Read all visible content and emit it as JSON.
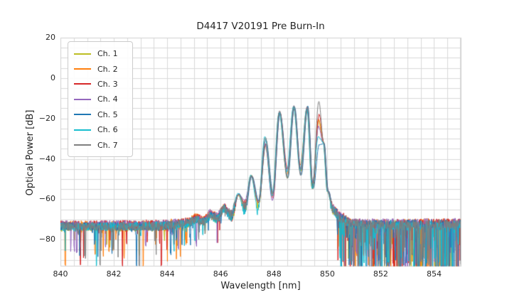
{
  "figure": {
    "background": "#ffffff",
    "text_color": "#262626",
    "grid_color": "#d9d9d9",
    "border_color": "#d2d2d2"
  },
  "chart_data": {
    "type": "line",
    "title": "D4417 V20191 Pre Burn-In",
    "xlabel": "Wavelength [nm]",
    "ylabel": "Optical Power [dB]",
    "xlim": [
      840,
      855
    ],
    "ylim": [
      -93.3,
      20
    ],
    "xticks": [
      840,
      842,
      844,
      846,
      848,
      850,
      852,
      854
    ],
    "yticks": [
      20,
      0,
      -20,
      -40,
      -60,
      -80
    ],
    "grid": {
      "minor_x_step_nm": 0.5,
      "minor_y_step_db": 5,
      "visible": true
    },
    "legend_position": "upper left",
    "x_range_nm": [
      840,
      855
    ],
    "sample_step_nm": 0.012,
    "description": "Optical spectra of 7 laser channels; ASE noise floor near -72 dB, modulated lobe structure rising from ~845 nm with ~0.5 nm mode spacing, envelope peaking near -12 dB at ~849.7 nm, sharp cut-off at 850 nm back to a noisy floor with deep downward spikes.",
    "noise": {
      "floor_db": -72.5,
      "jitter_db": 2.2,
      "spike_prob_left": 0.045,
      "spike_prob_mid": 0.02,
      "spike_prob_right": 0.22,
      "spike_depth_left_db": 15,
      "spike_depth_right_db": 26,
      "right_region_start_nm": 850.35,
      "quiet_threshold_db": -62,
      "deep_spike_floor_db": -93.1
    },
    "spectral_envelope": [
      [
        840.0,
        -73.2
      ],
      [
        843.5,
        -73.0
      ],
      [
        844.3,
        -72.6
      ],
      [
        844.75,
        -71.5
      ],
      [
        845.1,
        -69.5
      ],
      [
        845.35,
        -70.8
      ],
      [
        845.62,
        -67.5
      ],
      [
        845.88,
        -69.2
      ],
      [
        846.13,
        -64.4
      ],
      [
        846.4,
        -67.5
      ],
      [
        846.67,
        -57.5
      ],
      [
        846.92,
        -63.0
      ],
      [
        847.15,
        -48.5
      ],
      [
        847.42,
        -62.5
      ],
      [
        847.68,
        -31.5
      ],
      [
        847.95,
        -59.5
      ],
      [
        848.21,
        -16.8
      ],
      [
        848.5,
        -47.5
      ],
      [
        848.75,
        -14.2
      ],
      [
        849.0,
        -45.5
      ],
      [
        849.25,
        -14.6
      ],
      [
        849.45,
        -53.0
      ],
      [
        849.68,
        -12.0
      ],
      [
        849.86,
        -32.0
      ],
      [
        850.02,
        -56.0
      ],
      [
        850.22,
        -65.0
      ],
      [
        850.5,
        -69.0
      ],
      [
        850.9,
        -71.8
      ],
      [
        851.5,
        -72.2
      ],
      [
        855.2,
        -72.0
      ]
    ],
    "series": [
      {
        "name": "Ch. 1",
        "color": "#bcbd22",
        "seed": 101,
        "shift_nm": 0.005,
        "peak_main_db": -21.0,
        "peak_847_db": -33.5,
        "deep_spikes_nm": []
      },
      {
        "name": "Ch. 2",
        "color": "#ff7f0e",
        "seed": 202,
        "shift_nm": -0.015,
        "peak_main_db": -20.5,
        "peak_847_db": -33.0,
        "deep_spikes_nm": [
          840.18,
          843.1
        ]
      },
      {
        "name": "Ch. 3",
        "color": "#d62728",
        "seed": 303,
        "shift_nm": 0.012,
        "peak_main_db": -18.0,
        "peak_847_db": -32.5,
        "deep_spikes_nm": [
          840.75,
          842.32,
          843.78
        ]
      },
      {
        "name": "Ch. 4",
        "color": "#9467bd",
        "seed": 404,
        "shift_nm": -0.008,
        "peak_main_db": -24.0,
        "peak_847_db": -33.0,
        "deep_spikes_nm": []
      },
      {
        "name": "Ch. 5",
        "color": "#1f77b4",
        "seed": 505,
        "shift_nm": 0.018,
        "peak_main_db": -33.0,
        "peak_847_db": -30.5,
        "deep_spikes_nm": [
          842.85
        ]
      },
      {
        "name": "Ch. 6",
        "color": "#17becf",
        "seed": 606,
        "shift_nm": -0.02,
        "peak_main_db": -29.0,
        "peak_847_db": -29.0,
        "deep_spikes_nm": [
          841.35
        ]
      },
      {
        "name": "Ch. 7",
        "color": "#7f7f7f",
        "seed": 707,
        "shift_nm": 0.0,
        "peak_main_db": -11.5,
        "peak_847_db": -29.5,
        "deep_spikes_nm": [
          841.48,
          842.95
        ]
      }
    ]
  }
}
